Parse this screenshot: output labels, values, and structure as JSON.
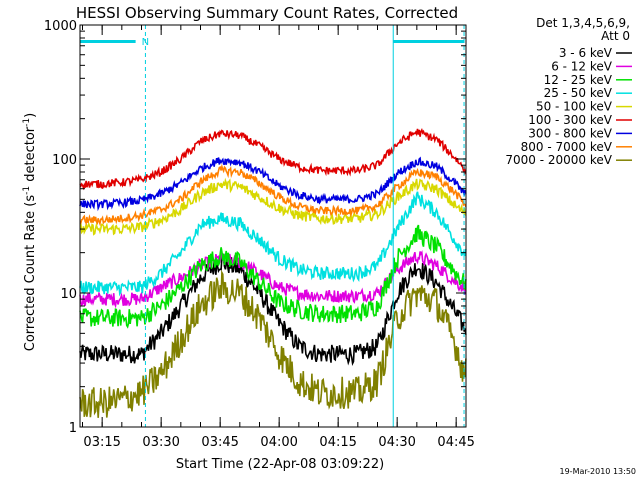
{
  "chart_data": {
    "type": "line",
    "title": "HESSI Observing Summary Count Rates, Corrected",
    "xlabel": "Start Time (22-Apr-08 03:09:22)",
    "ylabel": "Corrected Count Rate (s",
    "ylabel_sup1": "-1",
    "ylabel_mid": " detector",
    "ylabel_sup2": "-1",
    "ylabel_end": ")",
    "yscale": "log",
    "ylim": [
      1,
      1000
    ],
    "yticks": [
      "1",
      "10",
      "100",
      "1000"
    ],
    "xlim": [
      "03:09:22",
      "04:47:30"
    ],
    "xticks": [
      "03:15",
      "03:30",
      "03:45",
      "04:00",
      "04:15",
      "04:30",
      "04:45"
    ],
    "legend_title": [
      "Det 1,3,4,5,6,9,",
      "Att 0"
    ],
    "legend_position": "top-right-outside",
    "annotations": {
      "night_marker": "N",
      "intervals": [
        {
          "start": "03:09:22",
          "end": "03:26:00",
          "label": "N"
        },
        {
          "start": "04:29:00",
          "end": "04:47:00",
          "label": ""
        }
      ]
    },
    "series": [
      {
        "name": "3 - 6 keV",
        "color": "#000000",
        "x": [
          "03:09",
          "03:15",
          "03:20",
          "03:25",
          "03:30",
          "03:35",
          "03:40",
          "03:45",
          "03:50",
          "03:55",
          "04:00",
          "04:05",
          "04:10",
          "04:15",
          "04:20",
          "04:25",
          "04:30",
          "04:35",
          "04:40",
          "04:45",
          "04:47"
        ],
        "y": [
          3.5,
          3.5,
          3.5,
          3.5,
          5,
          8,
          13,
          17,
          15,
          10,
          6,
          4,
          3.5,
          3.5,
          3.5,
          4,
          10,
          16,
          12,
          7,
          5.5
        ]
      },
      {
        "name": "6 - 12 keV",
        "color": "#e000e0",
        "x": [
          "03:09",
          "03:15",
          "03:20",
          "03:25",
          "03:30",
          "03:35",
          "03:40",
          "03:45",
          "03:50",
          "03:55",
          "04:00",
          "04:05",
          "04:10",
          "04:15",
          "04:20",
          "04:25",
          "04:30",
          "04:35",
          "04:40",
          "04:45",
          "04:47"
        ],
        "y": [
          9,
          9,
          9,
          9,
          11,
          13,
          16,
          18,
          17,
          14,
          11,
          10,
          9.5,
          9.5,
          9.5,
          10,
          15,
          19,
          16,
          12,
          11
        ]
      },
      {
        "name": "12 - 25 keV",
        "color": "#00e000",
        "x": [
          "03:09",
          "03:15",
          "03:20",
          "03:25",
          "03:30",
          "03:35",
          "03:40",
          "03:45",
          "03:50",
          "03:55",
          "04:00",
          "04:05",
          "04:10",
          "04:15",
          "04:20",
          "04:25",
          "04:30",
          "04:35",
          "04:40",
          "04:45",
          "04:47"
        ],
        "y": [
          6.5,
          6.5,
          6.5,
          6.5,
          8,
          11,
          16,
          19,
          17,
          12,
          8.5,
          7.5,
          7,
          7,
          7,
          8,
          18,
          28,
          22,
          14,
          12
        ]
      },
      {
        "name": "25 - 50 keV",
        "color": "#00e0e0",
        "x": [
          "03:09",
          "03:15",
          "03:20",
          "03:25",
          "03:30",
          "03:35",
          "03:40",
          "03:45",
          "03:50",
          "03:55",
          "04:00",
          "04:05",
          "04:10",
          "04:15",
          "04:20",
          "04:25",
          "04:30",
          "04:35",
          "04:40",
          "04:45",
          "04:47"
        ],
        "y": [
          11,
          11,
          11,
          11,
          14,
          20,
          32,
          36,
          33,
          25,
          18,
          15,
          14,
          14,
          14,
          16,
          30,
          52,
          40,
          24,
          20
        ]
      },
      {
        "name": "50 - 100 keV",
        "color": "#d8d800",
        "x": [
          "03:09",
          "03:15",
          "03:20",
          "03:25",
          "03:30",
          "03:35",
          "03:40",
          "03:45",
          "03:50",
          "03:55",
          "04:00",
          "04:05",
          "04:10",
          "04:15",
          "04:20",
          "04:25",
          "04:30",
          "04:35",
          "04:40",
          "04:45",
          "04:47"
        ],
        "y": [
          30,
          30,
          30,
          31,
          35,
          42,
          55,
          65,
          62,
          52,
          43,
          38,
          36,
          36,
          36,
          39,
          52,
          65,
          60,
          44,
          40
        ]
      },
      {
        "name": "100 - 300 keV",
        "color": "#e00000",
        "x": [
          "03:09",
          "03:15",
          "03:20",
          "03:25",
          "03:30",
          "03:35",
          "03:40",
          "03:45",
          "03:50",
          "03:55",
          "04:00",
          "04:05",
          "04:10",
          "04:15",
          "04:20",
          "04:25",
          "04:30",
          "04:35",
          "04:40",
          "04:45",
          "04:47"
        ],
        "y": [
          65,
          65,
          67,
          70,
          80,
          100,
          135,
          155,
          150,
          125,
          100,
          87,
          82,
          82,
          82,
          90,
          130,
          160,
          140,
          100,
          85
        ]
      },
      {
        "name": "300 - 800 keV",
        "color": "#0000e0",
        "x": [
          "03:09",
          "03:15",
          "03:20",
          "03:25",
          "03:30",
          "03:35",
          "03:40",
          "03:45",
          "03:50",
          "03:55",
          "04:00",
          "04:05",
          "04:10",
          "04:15",
          "04:20",
          "04:25",
          "04:30",
          "04:35",
          "04:40",
          "04:45",
          "04:47"
        ],
        "y": [
          46,
          46,
          47,
          49,
          55,
          66,
          85,
          98,
          95,
          80,
          63,
          54,
          50,
          50,
          50,
          55,
          78,
          96,
          88,
          65,
          55
        ]
      },
      {
        "name": "800 - 7000 keV",
        "color": "#ff8000",
        "x": [
          "03:09",
          "03:15",
          "03:20",
          "03:25",
          "03:30",
          "03:35",
          "03:40",
          "03:45",
          "03:50",
          "03:55",
          "04:00",
          "04:05",
          "04:10",
          "04:15",
          "04:20",
          "04:25",
          "04:30",
          "04:35",
          "04:40",
          "04:45",
          "04:47"
        ],
        "y": [
          35,
          35,
          36,
          38,
          42,
          50,
          68,
          82,
          80,
          66,
          52,
          44,
          41,
          41,
          41,
          45,
          62,
          80,
          74,
          55,
          46
        ]
      },
      {
        "name": "7000 - 20000 keV",
        "color": "#808000",
        "x": [
          "03:09",
          "03:15",
          "03:20",
          "03:25",
          "03:30",
          "03:35",
          "03:40",
          "03:45",
          "03:50",
          "03:55",
          "04:00",
          "04:05",
          "04:10",
          "04:15",
          "04:20",
          "04:25",
          "04:30",
          "04:35",
          "04:40",
          "04:45",
          "04:47"
        ],
        "y": [
          1.5,
          1.5,
          1.6,
          1.8,
          2.5,
          4.5,
          8,
          11,
          10,
          6.5,
          3.5,
          2.2,
          1.8,
          1.8,
          1.8,
          2.2,
          6.5,
          10,
          8.5,
          4,
          2.5
        ]
      }
    ]
  },
  "footer": {
    "timestamp": "19-Mar-2010 13:50"
  }
}
